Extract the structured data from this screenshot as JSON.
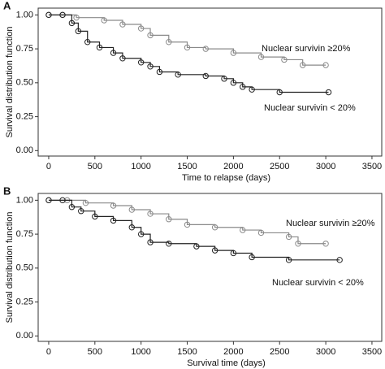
{
  "chart_data": [
    {
      "type": "step",
      "panel": "A",
      "x_label": "Time to relapse (days)",
      "y_label": "Survival distribution function",
      "xlim": [
        -114,
        3606
      ],
      "ylim": [
        -0.04,
        1.05
      ],
      "xticks": [
        0,
        500,
        1000,
        1500,
        2000,
        2500,
        3000,
        3500
      ],
      "yticks": [
        {
          "value": 0,
          "label": "0.00"
        },
        0.25,
        {
          "value": 0.5,
          "label": "0.50"
        },
        0.75,
        {
          "value": 1,
          "label": "1.00"
        }
      ],
      "series": [
        {
          "name": "Nuclear survivin ≥20%",
          "color": "#8a8a8a",
          "x": [
            0,
            150,
            300,
            600,
            800,
            1000,
            1100,
            1300,
            1500,
            1700,
            2000,
            2300,
            2550,
            2750,
            3000
          ],
          "values": [
            1.0,
            1.0,
            0.98,
            0.96,
            0.93,
            0.9,
            0.85,
            0.8,
            0.76,
            0.75,
            0.72,
            0.69,
            0.67,
            0.63,
            0.63
          ]
        },
        {
          "name": "Nuclear survivin < 20%",
          "color": "#222222",
          "x": [
            0,
            150,
            250,
            320,
            420,
            550,
            700,
            800,
            1000,
            1100,
            1200,
            1400,
            1700,
            1900,
            2000,
            2100,
            2200,
            2500,
            3030
          ],
          "values": [
            1.0,
            1.0,
            0.94,
            0.88,
            0.8,
            0.76,
            0.72,
            0.68,
            0.65,
            0.62,
            0.58,
            0.56,
            0.55,
            0.53,
            0.5,
            0.47,
            0.45,
            0.43,
            0.43
          ]
        }
      ]
    },
    {
      "type": "step",
      "panel": "B",
      "x_label": "Survival time (days)",
      "y_label": "Survival distribution function",
      "xlim": [
        -114,
        3606
      ],
      "ylim": [
        -0.04,
        1.05
      ],
      "xticks": [
        0,
        500,
        1000,
        1500,
        2000,
        2500,
        3000,
        3500
      ],
      "yticks": [
        {
          "value": 0,
          "label": "0.00"
        },
        0.25,
        {
          "value": 0.5,
          "label": "0.50"
        },
        0.75,
        {
          "value": 1,
          "label": "1.00"
        }
      ],
      "series": [
        {
          "name": "Nuclear survivin ≥20%",
          "color": "#8a8a8a",
          "x": [
            0,
            200,
            400,
            700,
            900,
            1100,
            1300,
            1500,
            1800,
            2100,
            2300,
            2600,
            2700,
            3000
          ],
          "values": [
            1.0,
            1.0,
            0.98,
            0.96,
            0.93,
            0.9,
            0.86,
            0.82,
            0.8,
            0.78,
            0.76,
            0.73,
            0.68,
            0.68
          ]
        },
        {
          "name": "Nuclear survivin < 20%",
          "color": "#222222",
          "x": [
            0,
            150,
            250,
            350,
            500,
            700,
            900,
            1000,
            1100,
            1300,
            1600,
            1800,
            2000,
            2200,
            2600,
            3150
          ],
          "values": [
            1.0,
            1.0,
            0.95,
            0.92,
            0.88,
            0.85,
            0.8,
            0.75,
            0.69,
            0.68,
            0.66,
            0.63,
            0.61,
            0.58,
            0.56,
            0.56
          ]
        }
      ]
    }
  ]
}
